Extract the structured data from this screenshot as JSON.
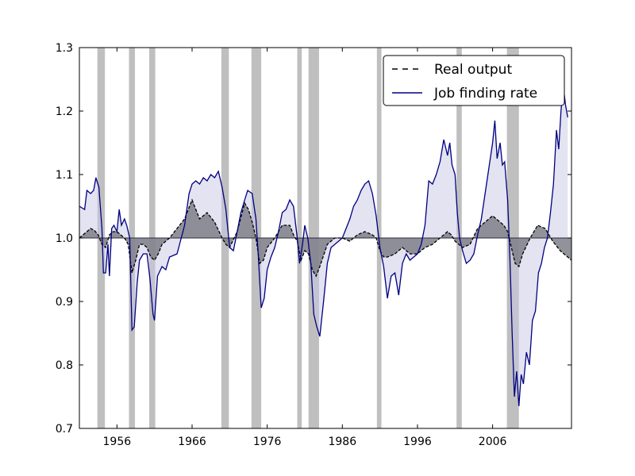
{
  "chart_data": {
    "type": "line",
    "title": "",
    "xlabel": "",
    "ylabel": "",
    "xlim": [
      1951,
      2016.5
    ],
    "ylim": [
      0.7,
      1.3
    ],
    "x_tick_labels": [
      "1956",
      "1966",
      "1976",
      "1986",
      "1996",
      "2006"
    ],
    "x_tick_values": [
      1956,
      1966,
      1976,
      1986,
      1996,
      2006
    ],
    "y_tick_labels": [
      "0.7",
      "0.8",
      "0.9",
      "1.0",
      "1.1",
      "1.2",
      "1.3"
    ],
    "y_tick_values": [
      0.7,
      0.8,
      0.9,
      1.0,
      1.1,
      1.2,
      1.3
    ],
    "baseline": 1.0,
    "legend_position": "top-right",
    "colors": {
      "output_line": "#000000",
      "output_fill": "#7f7f8a",
      "jfr_line": "#000080",
      "jfr_fill": "#c8c8e6",
      "recession": "#bfbfbf"
    },
    "recessions": [
      [
        1953.4,
        1954.4
      ],
      [
        1957.6,
        1958.4
      ],
      [
        1960.3,
        1961.1
      ],
      [
        1969.9,
        1970.9
      ],
      [
        1973.9,
        1975.2
      ],
      [
        1980.0,
        1980.6
      ],
      [
        1981.5,
        1982.9
      ],
      [
        1990.6,
        1991.2
      ],
      [
        2001.2,
        2001.9
      ],
      [
        2007.9,
        2009.5
      ]
    ],
    "series": [
      {
        "name": "Real output",
        "style": "dashed",
        "points": [
          [
            1951.0,
            1.0
          ],
          [
            1951.5,
            1.005
          ],
          [
            1952.0,
            1.01
          ],
          [
            1952.5,
            1.015
          ],
          [
            1953.0,
            1.012
          ],
          [
            1953.5,
            1.005
          ],
          [
            1954.0,
            0.99
          ],
          [
            1954.5,
            0.985
          ],
          [
            1955.0,
            1.005
          ],
          [
            1955.5,
            1.01
          ],
          [
            1956.0,
            1.01
          ],
          [
            1956.5,
            1.005
          ],
          [
            1957.0,
            1.0
          ],
          [
            1957.5,
            0.99
          ],
          [
            1958.0,
            0.945
          ],
          [
            1958.5,
            0.965
          ],
          [
            1959.0,
            0.99
          ],
          [
            1959.5,
            0.99
          ],
          [
            1960.0,
            0.985
          ],
          [
            1960.5,
            0.97
          ],
          [
            1961.0,
            0.965
          ],
          [
            1961.5,
            0.975
          ],
          [
            1962.0,
            0.99
          ],
          [
            1963.0,
            1.0
          ],
          [
            1964.0,
            1.015
          ],
          [
            1965.0,
            1.03
          ],
          [
            1966.0,
            1.06
          ],
          [
            1966.5,
            1.045
          ],
          [
            1967.0,
            1.03
          ],
          [
            1968.0,
            1.04
          ],
          [
            1969.0,
            1.025
          ],
          [
            1970.0,
            1.0
          ],
          [
            1970.5,
            0.99
          ],
          [
            1971.0,
            0.985
          ],
          [
            1972.0,
            1.01
          ],
          [
            1973.0,
            1.055
          ],
          [
            1973.5,
            1.045
          ],
          [
            1974.0,
            1.025
          ],
          [
            1974.5,
            1.0
          ],
          [
            1975.0,
            0.96
          ],
          [
            1975.5,
            0.965
          ],
          [
            1976.0,
            0.985
          ],
          [
            1977.0,
            1.0
          ],
          [
            1978.0,
            1.02
          ],
          [
            1979.0,
            1.02
          ],
          [
            1979.5,
            1.005
          ],
          [
            1980.0,
            0.995
          ],
          [
            1980.5,
            0.965
          ],
          [
            1981.0,
            0.98
          ],
          [
            1981.5,
            0.975
          ],
          [
            1982.0,
            0.95
          ],
          [
            1982.5,
            0.94
          ],
          [
            1983.0,
            0.955
          ],
          [
            1984.0,
            0.99
          ],
          [
            1985.0,
            1.0
          ],
          [
            1986.0,
            1.0
          ],
          [
            1987.0,
            0.995
          ],
          [
            1988.0,
            1.005
          ],
          [
            1989.0,
            1.01
          ],
          [
            1990.0,
            1.005
          ],
          [
            1990.5,
            1.0
          ],
          [
            1991.0,
            0.98
          ],
          [
            1991.5,
            0.97
          ],
          [
            1992.0,
            0.97
          ],
          [
            1993.0,
            0.975
          ],
          [
            1994.0,
            0.985
          ],
          [
            1995.0,
            0.975
          ],
          [
            1996.0,
            0.975
          ],
          [
            1997.0,
            0.985
          ],
          [
            1998.0,
            0.99
          ],
          [
            1999.0,
            1.0
          ],
          [
            2000.0,
            1.01
          ],
          [
            2000.5,
            1.005
          ],
          [
            2001.0,
            0.995
          ],
          [
            2001.5,
            0.99
          ],
          [
            2002.0,
            0.985
          ],
          [
            2003.0,
            0.99
          ],
          [
            2004.0,
            1.015
          ],
          [
            2005.0,
            1.025
          ],
          [
            2006.0,
            1.035
          ],
          [
            2007.0,
            1.025
          ],
          [
            2007.5,
            1.02
          ],
          [
            2008.0,
            1.01
          ],
          [
            2008.5,
            0.985
          ],
          [
            2009.0,
            0.96
          ],
          [
            2009.5,
            0.955
          ],
          [
            2010.0,
            0.975
          ],
          [
            2011.0,
            1.0
          ],
          [
            2012.0,
            1.02
          ],
          [
            2013.0,
            1.015
          ],
          [
            2014.0,
            0.995
          ],
          [
            2015.0,
            0.98
          ],
          [
            2016.0,
            0.97
          ],
          [
            2016.5,
            0.965
          ]
        ]
      },
      {
        "name": "Job finding rate",
        "style": "solid",
        "points": [
          [
            1951.0,
            1.05
          ],
          [
            1951.7,
            1.045
          ],
          [
            1952.0,
            1.075
          ],
          [
            1952.5,
            1.07
          ],
          [
            1952.9,
            1.075
          ],
          [
            1953.2,
            1.095
          ],
          [
            1953.6,
            1.08
          ],
          [
            1954.0,
            1.015
          ],
          [
            1954.2,
            0.945
          ],
          [
            1954.5,
            0.945
          ],
          [
            1954.8,
            0.99
          ],
          [
            1955.0,
            0.94
          ],
          [
            1955.3,
            1.015
          ],
          [
            1955.6,
            1.02
          ],
          [
            1956.0,
            1.01
          ],
          [
            1956.3,
            1.045
          ],
          [
            1956.6,
            1.02
          ],
          [
            1957.0,
            1.03
          ],
          [
            1957.3,
            1.02
          ],
          [
            1957.7,
            1.0
          ],
          [
            1958.0,
            0.855
          ],
          [
            1958.3,
            0.86
          ],
          [
            1958.7,
            0.93
          ],
          [
            1959.0,
            0.965
          ],
          [
            1959.5,
            0.975
          ],
          [
            1960.0,
            0.975
          ],
          [
            1960.4,
            0.935
          ],
          [
            1960.8,
            0.88
          ],
          [
            1961.0,
            0.87
          ],
          [
            1961.4,
            0.94
          ],
          [
            1962.0,
            0.955
          ],
          [
            1962.5,
            0.95
          ],
          [
            1963.0,
            0.97
          ],
          [
            1964.0,
            0.975
          ],
          [
            1965.0,
            1.02
          ],
          [
            1965.6,
            1.07
          ],
          [
            1966.0,
            1.085
          ],
          [
            1966.5,
            1.09
          ],
          [
            1967.0,
            1.085
          ],
          [
            1967.5,
            1.095
          ],
          [
            1968.0,
            1.09
          ],
          [
            1968.5,
            1.1
          ],
          [
            1969.0,
            1.095
          ],
          [
            1969.5,
            1.105
          ],
          [
            1970.0,
            1.08
          ],
          [
            1970.5,
            1.045
          ],
          [
            1971.0,
            0.985
          ],
          [
            1971.5,
            0.98
          ],
          [
            1972.0,
            1.01
          ],
          [
            1972.5,
            1.04
          ],
          [
            1973.0,
            1.06
          ],
          [
            1973.4,
            1.075
          ],
          [
            1974.0,
            1.07
          ],
          [
            1974.5,
            1.03
          ],
          [
            1974.8,
            0.975
          ],
          [
            1975.2,
            0.89
          ],
          [
            1975.6,
            0.905
          ],
          [
            1976.0,
            0.95
          ],
          [
            1976.5,
            0.97
          ],
          [
            1977.0,
            0.985
          ],
          [
            1977.5,
            1.01
          ],
          [
            1978.0,
            1.04
          ],
          [
            1978.5,
            1.045
          ],
          [
            1979.0,
            1.06
          ],
          [
            1979.5,
            1.05
          ],
          [
            1980.0,
            1.0
          ],
          [
            1980.3,
            0.96
          ],
          [
            1980.7,
            0.99
          ],
          [
            1981.0,
            1.02
          ],
          [
            1981.4,
            1.0
          ],
          [
            1981.8,
            0.96
          ],
          [
            1982.2,
            0.88
          ],
          [
            1982.6,
            0.86
          ],
          [
            1983.0,
            0.845
          ],
          [
            1983.5,
            0.9
          ],
          [
            1984.0,
            0.96
          ],
          [
            1984.5,
            0.985
          ],
          [
            1985.0,
            0.99
          ],
          [
            1985.5,
            0.995
          ],
          [
            1986.0,
            1.0
          ],
          [
            1986.5,
            1.015
          ],
          [
            1987.0,
            1.03
          ],
          [
            1987.5,
            1.05
          ],
          [
            1988.0,
            1.06
          ],
          [
            1988.5,
            1.075
          ],
          [
            1989.0,
            1.085
          ],
          [
            1989.5,
            1.09
          ],
          [
            1990.0,
            1.07
          ],
          [
            1990.5,
            1.035
          ],
          [
            1991.0,
            0.985
          ],
          [
            1991.5,
            0.955
          ],
          [
            1992.0,
            0.905
          ],
          [
            1992.5,
            0.94
          ],
          [
            1993.0,
            0.945
          ],
          [
            1993.5,
            0.91
          ],
          [
            1994.0,
            0.96
          ],
          [
            1994.5,
            0.975
          ],
          [
            1995.0,
            0.965
          ],
          [
            1996.0,
            0.975
          ],
          [
            1996.5,
            0.99
          ],
          [
            1997.0,
            1.02
          ],
          [
            1997.5,
            1.09
          ],
          [
            1998.0,
            1.085
          ],
          [
            1998.5,
            1.1
          ],
          [
            1999.0,
            1.12
          ],
          [
            1999.5,
            1.155
          ],
          [
            2000.0,
            1.13
          ],
          [
            2000.3,
            1.15
          ],
          [
            2000.6,
            1.115
          ],
          [
            2001.0,
            1.1
          ],
          [
            2001.3,
            1.04
          ],
          [
            2001.6,
            1.0
          ],
          [
            2002.0,
            0.98
          ],
          [
            2002.5,
            0.96
          ],
          [
            2003.0,
            0.965
          ],
          [
            2003.5,
            0.975
          ],
          [
            2004.0,
            1.005
          ],
          [
            2004.5,
            1.03
          ],
          [
            2005.0,
            1.07
          ],
          [
            2005.5,
            1.11
          ],
          [
            2006.0,
            1.15
          ],
          [
            2006.3,
            1.185
          ],
          [
            2006.6,
            1.125
          ],
          [
            2007.0,
            1.15
          ],
          [
            2007.3,
            1.115
          ],
          [
            2007.6,
            1.12
          ],
          [
            2008.0,
            1.06
          ],
          [
            2008.3,
            0.97
          ],
          [
            2008.6,
            0.85
          ],
          [
            2008.9,
            0.75
          ],
          [
            2009.2,
            0.79
          ],
          [
            2009.5,
            0.735
          ],
          [
            2009.8,
            0.785
          ],
          [
            2010.1,
            0.77
          ],
          [
            2010.5,
            0.82
          ],
          [
            2010.9,
            0.8
          ],
          [
            2011.3,
            0.87
          ],
          [
            2011.7,
            0.885
          ],
          [
            2012.1,
            0.945
          ],
          [
            2012.5,
            0.96
          ],
          [
            2012.9,
            0.985
          ],
          [
            2013.3,
            1.0
          ],
          [
            2013.7,
            1.04
          ],
          [
            2014.1,
            1.085
          ],
          [
            2014.5,
            1.17
          ],
          [
            2014.8,
            1.14
          ],
          [
            2015.1,
            1.2
          ],
          [
            2015.4,
            1.24
          ],
          [
            2015.7,
            1.21
          ],
          [
            2016.0,
            1.19
          ]
        ]
      }
    ]
  }
}
